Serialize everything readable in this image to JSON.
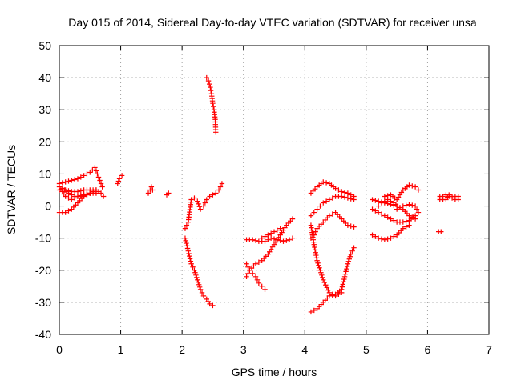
{
  "chart_data": {
    "type": "scatter",
    "title": "Day 015 of 2014, Sidereal Day-to-day VTEC variation (SDTVAR) for receiver unsa",
    "xlabel": "GPS time / hours",
    "ylabel": "SDTVAR / TECUs",
    "xlim": [
      0,
      7
    ],
    "ylim": [
      -40,
      50
    ],
    "xticks": [
      "0",
      "1",
      "2",
      "3",
      "4",
      "5",
      "6",
      "7"
    ],
    "yticks": [
      "-40",
      "-30",
      "-20",
      "-10",
      "0",
      "10",
      "20",
      "30",
      "40",
      "50"
    ],
    "grid": true,
    "marker": "plus",
    "color": "#ff0000",
    "segments": [
      [
        [
          0.0,
          7
        ],
        [
          0.1,
          7.5
        ],
        [
          0.2,
          8
        ],
        [
          0.3,
          8.5
        ],
        [
          0.4,
          9.5
        ],
        [
          0.5,
          10.5
        ],
        [
          0.58,
          12
        ],
        [
          0.62,
          10
        ],
        [
          0.66,
          8
        ],
        [
          0.7,
          6
        ]
      ],
      [
        [
          0.0,
          5
        ],
        [
          0.1,
          5
        ],
        [
          0.2,
          4.5
        ],
        [
          0.3,
          4.5
        ],
        [
          0.4,
          5
        ],
        [
          0.5,
          5
        ],
        [
          0.6,
          5
        ],
        [
          0.68,
          4
        ],
        [
          0.72,
          3
        ]
      ],
      [
        [
          0.0,
          6
        ],
        [
          0.1,
          3
        ],
        [
          0.2,
          2
        ],
        [
          0.3,
          3
        ],
        [
          0.4,
          3.5
        ],
        [
          0.5,
          4
        ],
        [
          0.6,
          5
        ]
      ],
      [
        [
          0.0,
          -2
        ],
        [
          0.1,
          -2
        ],
        [
          0.2,
          -1
        ],
        [
          0.3,
          1
        ],
        [
          0.4,
          3
        ],
        [
          0.5,
          4
        ],
        [
          0.6,
          4
        ]
      ],
      [
        [
          0.05,
          5.5
        ],
        [
          0.15,
          4
        ],
        [
          0.25,
          3
        ],
        [
          0.35,
          3
        ],
        [
          0.45,
          3.5
        ],
        [
          0.55,
          4.5
        ]
      ],
      [
        [
          0.95,
          7
        ],
        [
          0.98,
          8.5
        ],
        [
          1.02,
          9.5
        ]
      ],
      [
        [
          1.45,
          4
        ],
        [
          1.48,
          5
        ],
        [
          1.5,
          6
        ],
        [
          1.52,
          5
        ]
      ],
      [
        [
          1.75,
          3.5
        ],
        [
          1.78,
          4
        ]
      ],
      [
        [
          2.05,
          -7
        ],
        [
          2.1,
          -5
        ],
        [
          2.15,
          2
        ],
        [
          2.2,
          2.5
        ],
        [
          2.25,
          1.5
        ],
        [
          2.3,
          -1
        ],
        [
          2.35,
          0
        ],
        [
          2.4,
          2
        ],
        [
          2.45,
          3
        ],
        [
          2.5,
          3.5
        ],
        [
          2.55,
          4
        ],
        [
          2.6,
          5
        ],
        [
          2.65,
          7
        ]
      ],
      [
        [
          2.05,
          -10
        ],
        [
          2.1,
          -14
        ],
        [
          2.15,
          -18
        ],
        [
          2.2,
          -20
        ],
        [
          2.25,
          -23
        ],
        [
          2.3,
          -26
        ],
        [
          2.35,
          -28
        ],
        [
          2.4,
          -29
        ],
        [
          2.45,
          -30.5
        ],
        [
          2.5,
          -31
        ]
      ],
      [
        [
          2.4,
          40
        ],
        [
          2.43,
          39
        ],
        [
          2.46,
          37
        ],
        [
          2.48,
          35
        ],
        [
          2.5,
          32
        ],
        [
          2.52,
          30
        ],
        [
          2.54,
          27
        ],
        [
          2.55,
          23
        ]
      ],
      [
        [
          3.05,
          -10.5
        ],
        [
          3.15,
          -10.5
        ],
        [
          3.25,
          -11
        ],
        [
          3.35,
          -11
        ],
        [
          3.45,
          -10
        ],
        [
          3.55,
          -10.5
        ],
        [
          3.65,
          -11
        ],
        [
          3.75,
          -10.5
        ],
        [
          3.8,
          -10
        ]
      ],
      [
        [
          3.05,
          -22
        ],
        [
          3.1,
          -20
        ],
        [
          3.2,
          -18
        ],
        [
          3.3,
          -17
        ],
        [
          3.4,
          -15
        ],
        [
          3.5,
          -12
        ],
        [
          3.6,
          -9
        ],
        [
          3.7,
          -6
        ],
        [
          3.8,
          -4
        ]
      ],
      [
        [
          3.05,
          -18
        ],
        [
          3.1,
          -20
        ],
        [
          3.15,
          -21
        ],
        [
          3.2,
          -22
        ],
        [
          3.25,
          -24
        ],
        [
          3.3,
          -25
        ],
        [
          3.35,
          -26
        ]
      ],
      [
        [
          3.3,
          -10
        ],
        [
          3.4,
          -9
        ],
        [
          3.5,
          -8
        ],
        [
          3.6,
          -7
        ]
      ],
      [
        [
          4.1,
          4
        ],
        [
          4.2,
          6
        ],
        [
          4.3,
          7.5
        ],
        [
          4.4,
          7
        ],
        [
          4.5,
          5.5
        ],
        [
          4.6,
          4.5
        ],
        [
          4.7,
          4
        ],
        [
          4.8,
          3
        ]
      ],
      [
        [
          4.1,
          -3
        ],
        [
          4.15,
          -2
        ],
        [
          4.2,
          -1
        ],
        [
          4.25,
          0
        ],
        [
          4.3,
          1
        ],
        [
          4.4,
          2
        ],
        [
          4.5,
          3
        ],
        [
          4.6,
          3
        ],
        [
          4.7,
          2.5
        ],
        [
          4.8,
          2
        ]
      ],
      [
        [
          4.1,
          -10
        ],
        [
          4.15,
          -9
        ],
        [
          4.2,
          -7
        ],
        [
          4.3,
          -5
        ],
        [
          4.4,
          -3
        ],
        [
          4.5,
          -2
        ],
        [
          4.6,
          -4
        ],
        [
          4.7,
          -6
        ],
        [
          4.8,
          -6.5
        ]
      ],
      [
        [
          4.1,
          -33
        ],
        [
          4.2,
          -32
        ],
        [
          4.3,
          -30
        ],
        [
          4.4,
          -28
        ],
        [
          4.5,
          -27.5
        ],
        [
          4.6,
          -26
        ],
        [
          4.65,
          -22
        ],
        [
          4.7,
          -18
        ],
        [
          4.75,
          -15
        ],
        [
          4.8,
          -13
        ]
      ],
      [
        [
          4.1,
          -6
        ],
        [
          4.15,
          -12
        ],
        [
          4.2,
          -17
        ],
        [
          4.3,
          -23
        ],
        [
          4.4,
          -27
        ],
        [
          4.5,
          -28
        ],
        [
          4.6,
          -27
        ]
      ],
      [
        [
          5.1,
          2
        ],
        [
          5.2,
          1.5
        ],
        [
          5.3,
          1
        ],
        [
          5.4,
          0.5
        ],
        [
          5.5,
          0
        ],
        [
          5.6,
          -1
        ],
        [
          5.7,
          -3
        ],
        [
          5.8,
          -4
        ]
      ],
      [
        [
          5.1,
          -9
        ],
        [
          5.2,
          -10
        ],
        [
          5.3,
          -10.5
        ],
        [
          5.4,
          -10
        ],
        [
          5.5,
          -9
        ],
        [
          5.6,
          -7
        ],
        [
          5.7,
          -6
        ]
      ],
      [
        [
          5.1,
          -1
        ],
        [
          5.2,
          -2
        ],
        [
          5.3,
          -3
        ],
        [
          5.4,
          -4
        ],
        [
          5.5,
          -5
        ],
        [
          5.6,
          -5
        ],
        [
          5.7,
          -4.5
        ],
        [
          5.8,
          -3
        ]
      ],
      [
        [
          5.3,
          3
        ],
        [
          5.4,
          3.5
        ],
        [
          5.5,
          2
        ],
        [
          5.6,
          5
        ],
        [
          5.7,
          6.5
        ],
        [
          5.8,
          6
        ],
        [
          5.85,
          5
        ]
      ],
      [
        [
          5.5,
          -1
        ],
        [
          5.6,
          0
        ],
        [
          5.7,
          0.5
        ],
        [
          5.8,
          0
        ],
        [
          5.85,
          -2
        ]
      ],
      [
        [
          5.2,
          0
        ],
        [
          5.25,
          1
        ],
        [
          5.35,
          2
        ],
        [
          5.45,
          1
        ],
        [
          5.55,
          -0.5
        ]
      ],
      [
        [
          6.18,
          -8
        ],
        [
          6.22,
          -8
        ]
      ],
      [
        [
          6.2,
          2
        ],
        [
          6.25,
          3
        ],
        [
          6.3,
          3.5
        ],
        [
          6.35,
          3
        ],
        [
          6.4,
          2.5
        ],
        [
          6.45,
          3
        ],
        [
          6.5,
          2
        ]
      ],
      [
        [
          6.2,
          3
        ],
        [
          6.25,
          2
        ],
        [
          6.3,
          2
        ],
        [
          6.35,
          3.5
        ],
        [
          6.4,
          3
        ],
        [
          6.45,
          2
        ],
        [
          6.5,
          3
        ]
      ]
    ]
  }
}
